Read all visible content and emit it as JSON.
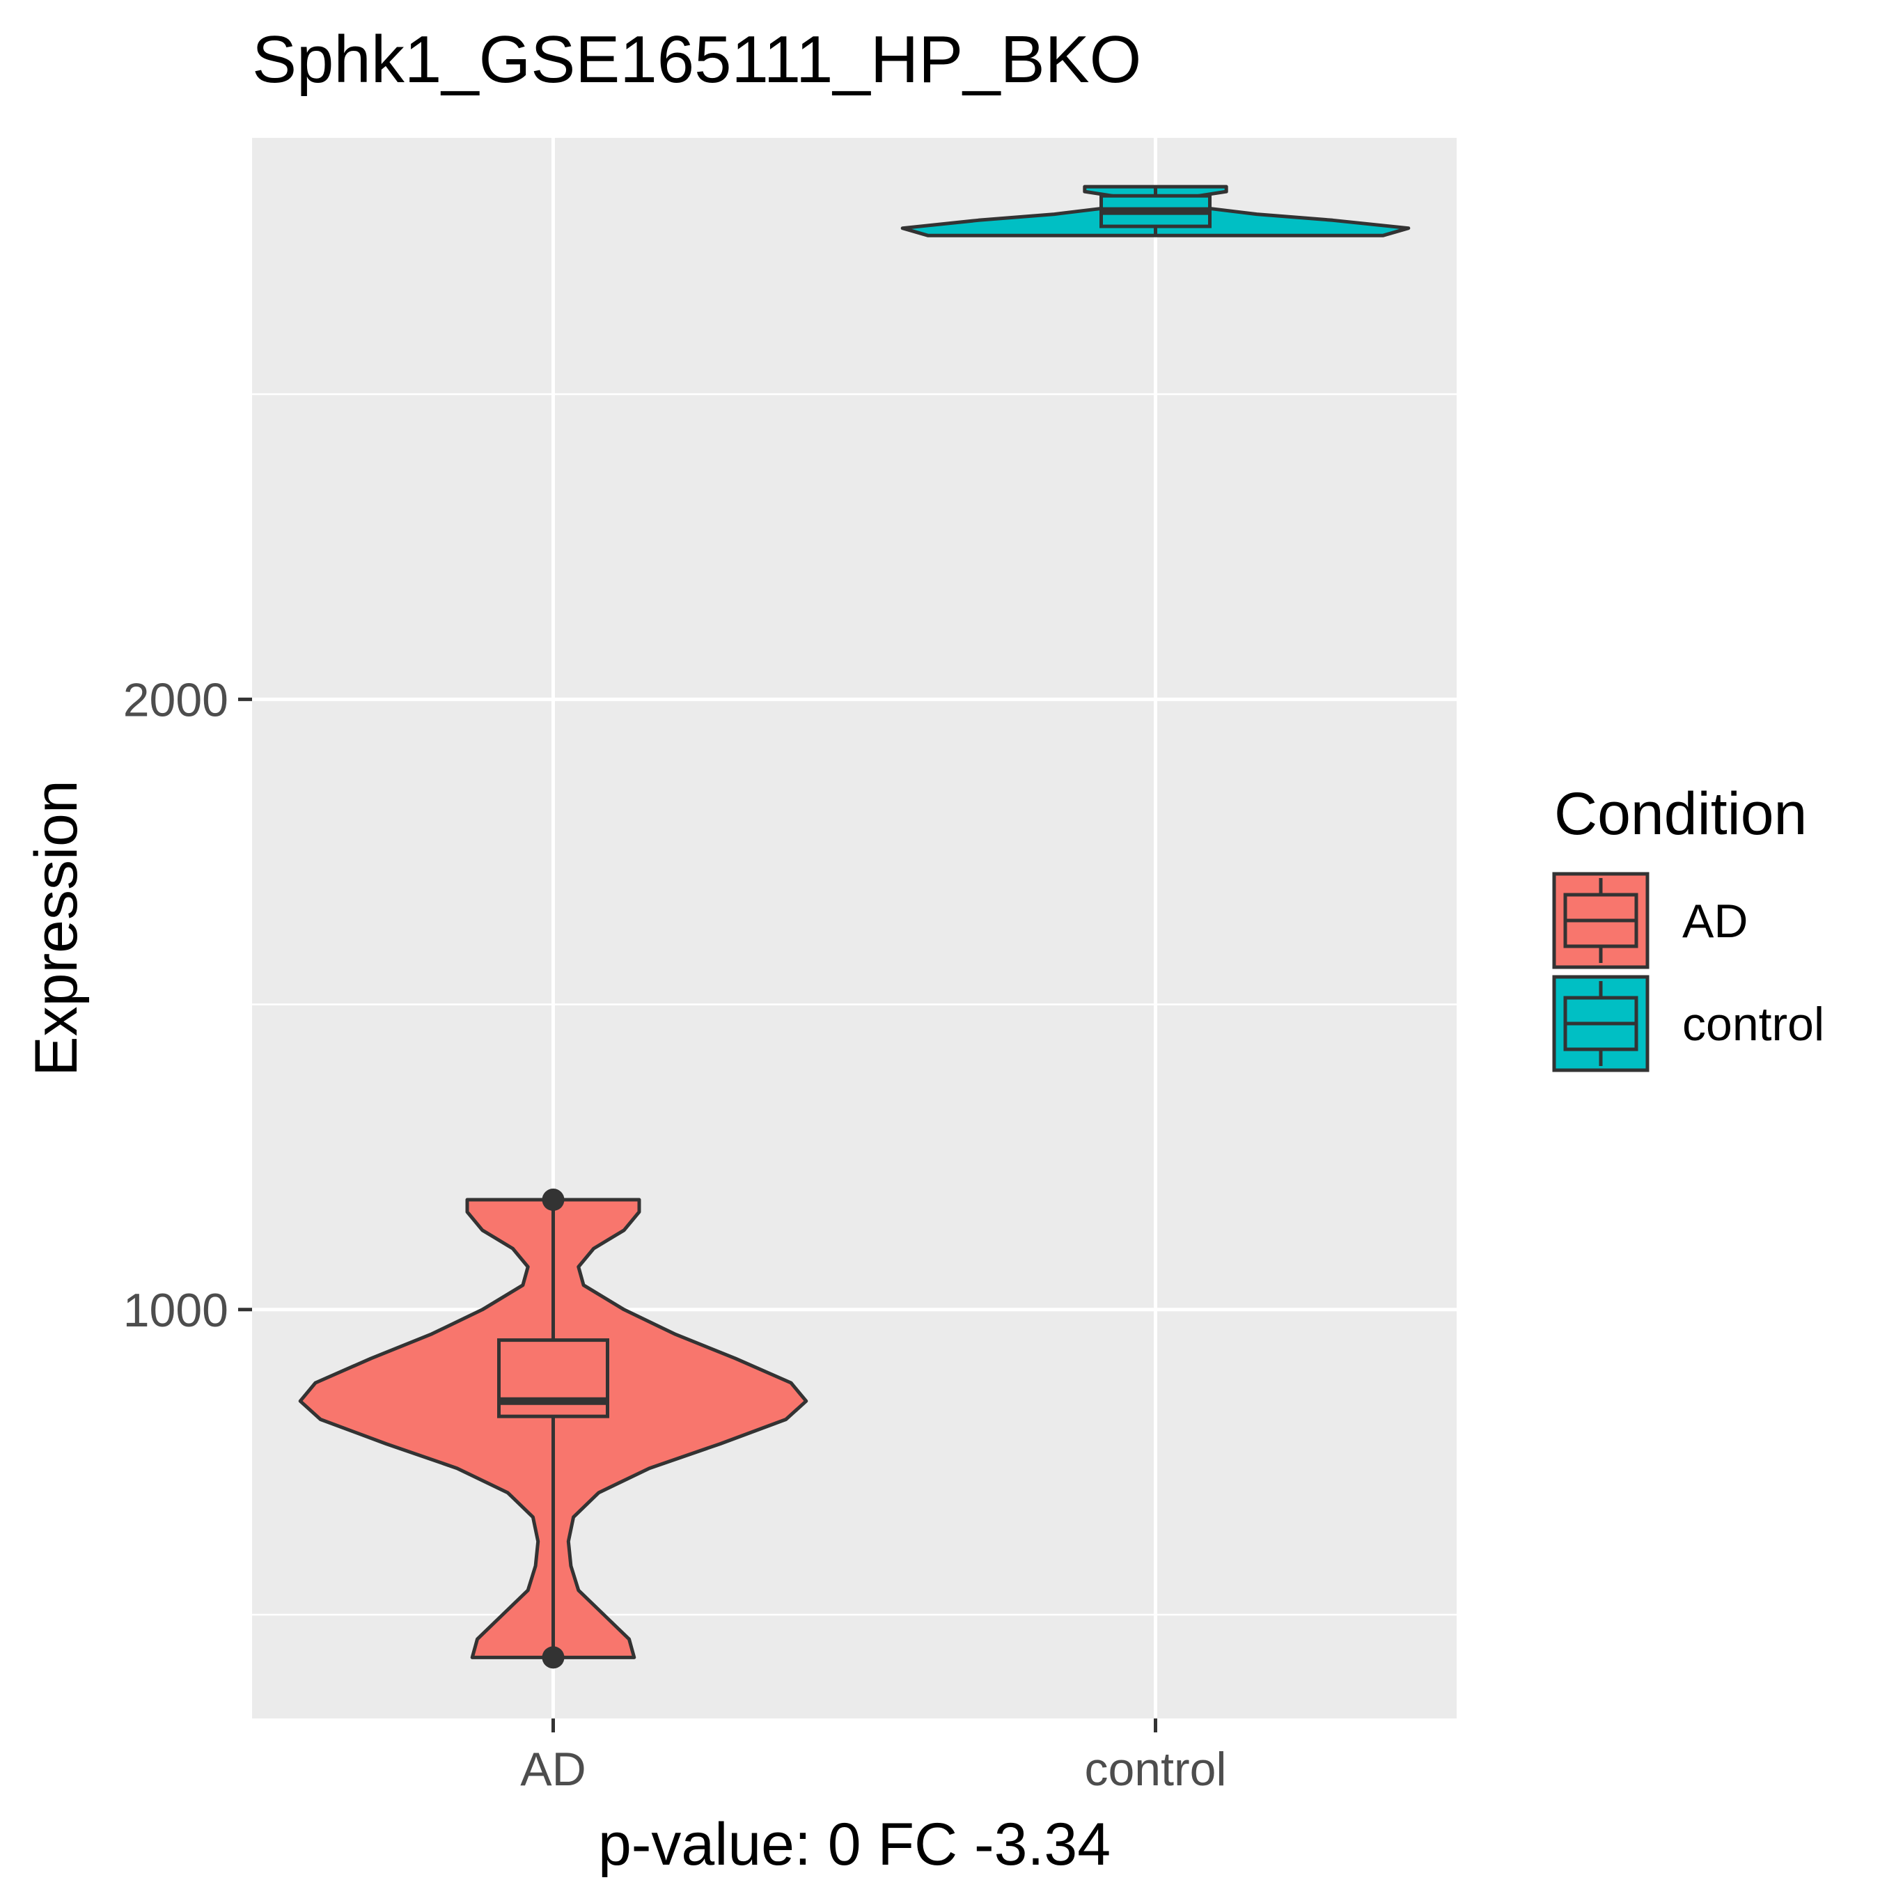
{
  "chart_data": {
    "type": "violin",
    "title": "Sphk1_GSE165111_HP_BKO",
    "xlabel": "p-value: 0 FC -3.34",
    "ylabel": "Expression",
    "categories": [
      "AD",
      "control"
    ],
    "ylim": [
      330,
      2920
    ],
    "yticks": [
      1000,
      2000
    ],
    "grid": true,
    "legend": {
      "title": "Condition",
      "position": "right",
      "entries": [
        "AD",
        "control"
      ]
    },
    "colors": {
      "AD": "#F8766D",
      "control": "#00BFC4",
      "outline": "#333333",
      "panel": "#EBEBEB",
      "gridline": "#FFFFFF"
    },
    "series": [
      {
        "name": "AD",
        "box": {
          "q1": 825,
          "median": 850,
          "q3": 950
        },
        "outliers": [
          1180,
          430
        ],
        "violin_range": [
          430,
          1180
        ],
        "violin_profile": [
          [
            430,
            0.32
          ],
          [
            460,
            0.3
          ],
          [
            500,
            0.2
          ],
          [
            540,
            0.1
          ],
          [
            580,
            0.07
          ],
          [
            620,
            0.06
          ],
          [
            660,
            0.08
          ],
          [
            700,
            0.18
          ],
          [
            740,
            0.38
          ],
          [
            780,
            0.66
          ],
          [
            820,
            0.92
          ],
          [
            850,
            1.0
          ],
          [
            880,
            0.94
          ],
          [
            920,
            0.72
          ],
          [
            960,
            0.48
          ],
          [
            1000,
            0.28
          ],
          [
            1040,
            0.12
          ],
          [
            1070,
            0.1
          ],
          [
            1100,
            0.16
          ],
          [
            1130,
            0.28
          ],
          [
            1160,
            0.34
          ],
          [
            1180,
            0.34
          ]
        ]
      },
      {
        "name": "control",
        "box": {
          "q1": 2775,
          "median": 2800,
          "q3": 2825
        },
        "outliers": [],
        "violin_range": [
          2760,
          2840
        ],
        "violin_profile": [
          [
            2760,
            0.9
          ],
          [
            2772,
            1.0
          ],
          [
            2785,
            0.7
          ],
          [
            2795,
            0.4
          ],
          [
            2805,
            0.2
          ],
          [
            2815,
            0.13
          ],
          [
            2825,
            0.17
          ],
          [
            2832,
            0.28
          ],
          [
            2840,
            0.28
          ]
        ]
      }
    ]
  }
}
